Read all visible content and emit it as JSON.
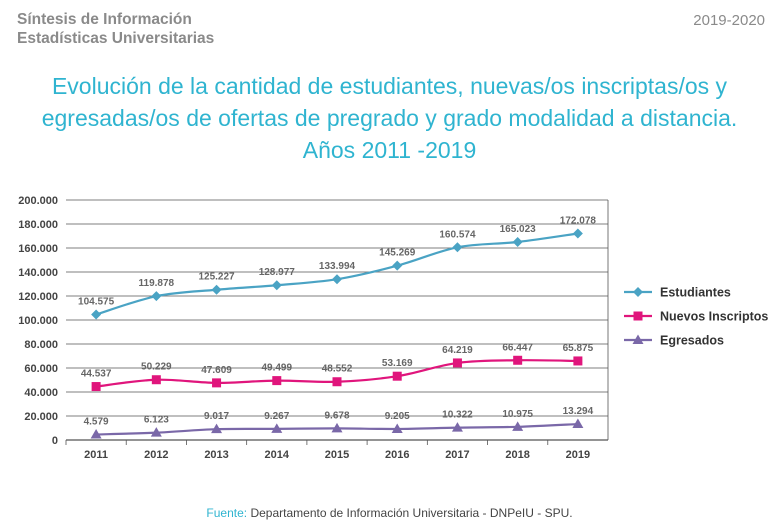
{
  "header": {
    "line1": "Síntesis de Información",
    "line2": "Estadísticas Universitarias",
    "period": "2019-2020"
  },
  "source": {
    "label": "Fuente:",
    "text": "Departamento de Información Universitaria - DNPeIU - SPU."
  },
  "colors": {
    "title": "#2fb4d0",
    "estudiantes": "#4aa3c4",
    "nuevos": "#e0157c",
    "egresados": "#7a68a8",
    "grid": "#555555"
  },
  "chart_data": {
    "type": "line",
    "title_lines": [
      "Evolución de la cantidad de estudiantes, nuevas/os inscriptas/os y",
      "egresadas/os de ofertas de pregrado y grado modalidad a distancia.",
      "Años 2011 -2019"
    ],
    "categories": [
      "2011",
      "2012",
      "2013",
      "2014",
      "2015",
      "2016",
      "2017",
      "2018",
      "2019"
    ],
    "ylim": [
      0,
      200000
    ],
    "yticks": [
      0,
      20000,
      40000,
      60000,
      80000,
      100000,
      120000,
      140000,
      160000,
      180000,
      200000
    ],
    "ytick_labels": [
      "0",
      "20.000",
      "40.000",
      "60.000",
      "80.000",
      "100.000",
      "120.000",
      "140.000",
      "160.000",
      "180.000",
      "200.000"
    ],
    "legend_position": "right",
    "series": [
      {
        "name": "Estudiantes",
        "marker": "diamond",
        "values": [
          104575,
          119878,
          125227,
          128977,
          133994,
          145269,
          160574,
          165023,
          172078
        ],
        "labels": [
          "104.575",
          "119.878",
          "125.227",
          "128.977",
          "133.994",
          "145.269",
          "160.574",
          "165.023",
          "172.078"
        ]
      },
      {
        "name": "Nuevos Inscriptos",
        "marker": "square",
        "values": [
          44537,
          50229,
          47609,
          49499,
          48552,
          53169,
          64219,
          66447,
          65875
        ],
        "labels": [
          "44.537",
          "50.229",
          "47.609",
          "49.499",
          "48.552",
          "53.169",
          "64.219",
          "66.447",
          "65.875"
        ]
      },
      {
        "name": "Egresados",
        "marker": "triangle",
        "values": [
          4579,
          6123,
          9017,
          9267,
          9678,
          9205,
          10322,
          10975,
          13294
        ],
        "labels": [
          "4.579",
          "6.123",
          "9.017",
          "9.267",
          "9.678",
          "9.205",
          "10.322",
          "10.975",
          "13.294"
        ]
      }
    ]
  }
}
